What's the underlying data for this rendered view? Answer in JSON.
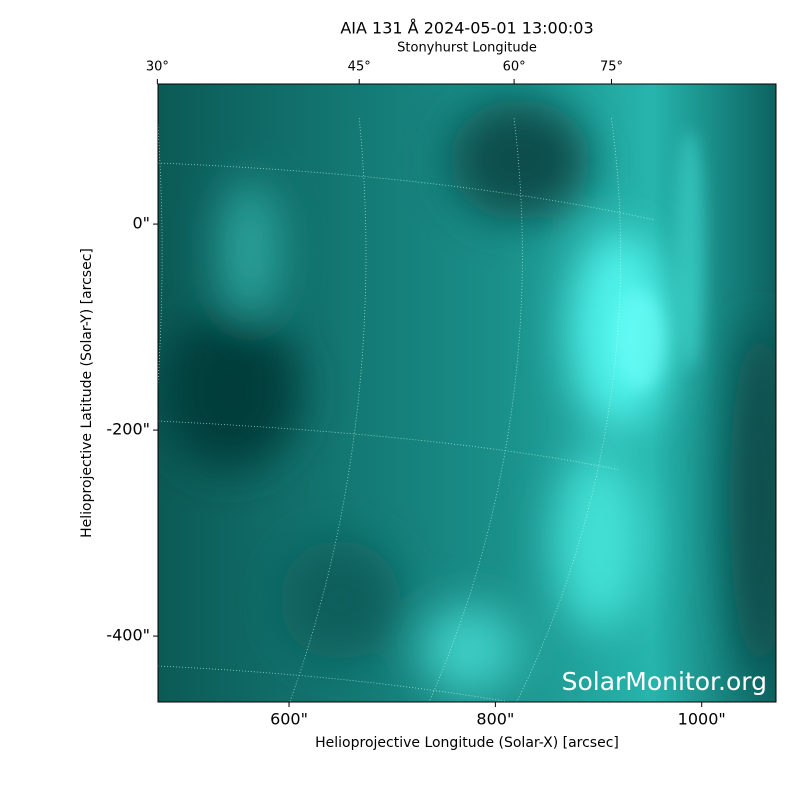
{
  "chart_data": {
    "type": "image",
    "title": "AIA 131 Å 2024-05-01 13:00:03",
    "xlabel": "Helioprojective Longitude (Solar-X) [arcsec]",
    "ylabel": "Helioprojective Latitude (Solar-Y) [arcsec]",
    "x2label": "Stonyhurst Longitude",
    "watermark": "SolarMonitor.org",
    "xlim": [
      473,
      1072
    ],
    "ylim": [
      -464,
      136
    ],
    "xticks": [
      {
        "value": 600,
        "label": "600\""
      },
      {
        "value": 800,
        "label": "800\""
      },
      {
        "value": 1000,
        "label": "1000\""
      }
    ],
    "yticks": [
      {
        "value": 0,
        "label": "0\""
      },
      {
        "value": -200,
        "label": "-200\""
      },
      {
        "value": -400,
        "label": "-400\""
      }
    ],
    "x2ticks": [
      {
        "value": 30,
        "label": "30°"
      },
      {
        "value": 45,
        "label": "45°"
      },
      {
        "value": 60,
        "label": "60°"
      },
      {
        "value": 75,
        "label": "75°"
      }
    ],
    "grid": true
  }
}
